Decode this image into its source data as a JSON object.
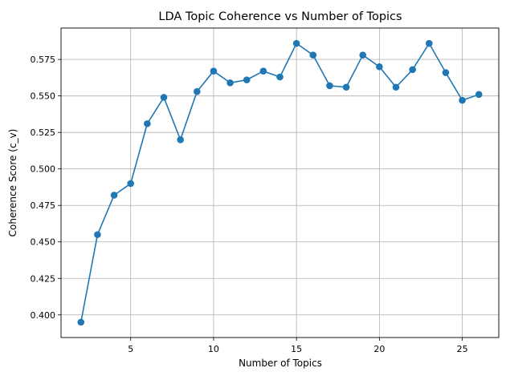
{
  "chart_data": {
    "type": "line",
    "title": "LDA Topic Coherence vs Number of Topics",
    "xlabel": "Number of Topics",
    "ylabel": "Coherence Score (c_v)",
    "xlim": [
      0.8,
      27.2
    ],
    "ylim": [
      0.3845,
      0.5965
    ],
    "xticks": [
      5,
      10,
      15,
      20,
      25
    ],
    "yticks": [
      0.4,
      0.425,
      0.45,
      0.475,
      0.5,
      0.525,
      0.55,
      0.575
    ],
    "grid": true,
    "series": [
      {
        "color": "#1f77b4",
        "marker": "circle",
        "x": [
          2,
          3,
          4,
          5,
          6,
          7,
          8,
          9,
          10,
          11,
          12,
          13,
          14,
          15,
          16,
          17,
          18,
          19,
          20,
          21,
          22,
          23,
          24,
          25,
          26
        ],
        "y": [
          0.395,
          0.455,
          0.482,
          0.49,
          0.531,
          0.549,
          0.52,
          0.553,
          0.567,
          0.559,
          0.561,
          0.567,
          0.563,
          0.586,
          0.578,
          0.557,
          0.556,
          0.578,
          0.57,
          0.556,
          0.568,
          0.586,
          0.566,
          0.547,
          0.551
        ]
      }
    ]
  }
}
